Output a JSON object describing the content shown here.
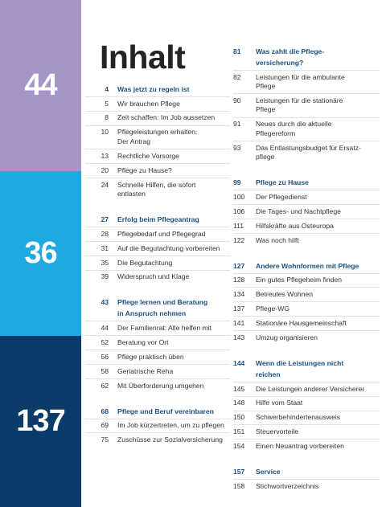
{
  "sidebar": [
    {
      "number": "44"
    },
    {
      "number": "36"
    },
    {
      "number": "137"
    }
  ],
  "title": "Inhalt",
  "columns": [
    [
      {
        "page": "4",
        "lines": [
          "Was jetzt zu regeln ist"
        ],
        "entries": [
          {
            "page": "5",
            "lines": [
              "Wir brauchen Pflege"
            ]
          },
          {
            "page": "8",
            "lines": [
              "Zeit schaffen: Im Job aussetzen"
            ]
          },
          {
            "page": "10",
            "lines": [
              "Pflegeleistungen erhalten:",
              "Der Antrag"
            ]
          },
          {
            "page": "13",
            "lines": [
              "Rechtliche Vorsorge"
            ]
          },
          {
            "page": "20",
            "lines": [
              "Pflege zu Hause?"
            ]
          },
          {
            "page": "24",
            "lines": [
              "Schnelle Hilfen, die sofort",
              "entlasten"
            ]
          }
        ]
      },
      {
        "page": "27",
        "lines": [
          "Erfolg beim Pflegeantrag"
        ],
        "entries": [
          {
            "page": "28",
            "lines": [
              "Pflegebedarf und Pflegegrad"
            ]
          },
          {
            "page": "31",
            "lines": [
              "Auf die Begutachtung vorbereiten"
            ]
          },
          {
            "page": "35",
            "lines": [
              "Die Begutachtung"
            ]
          },
          {
            "page": "39",
            "lines": [
              "Widerspruch und Klage"
            ]
          }
        ]
      },
      {
        "page": "43",
        "lines": [
          "Pflege lernen und Beratung",
          "in Anspruch nehmen"
        ],
        "entries": [
          {
            "page": "44",
            "lines": [
              "Der Familienrat: Alle helfen mit"
            ]
          },
          {
            "page": "52",
            "lines": [
              "Beratung vor Ort"
            ]
          },
          {
            "page": "56",
            "lines": [
              "Pflege praktisch üben"
            ]
          },
          {
            "page": "58",
            "lines": [
              "Geriatrische Reha"
            ]
          },
          {
            "page": "62",
            "lines": [
              "Mit Überforderung umgehen"
            ]
          }
        ]
      },
      {
        "page": "68",
        "lines": [
          "Pflege und Beruf vereinbaren"
        ],
        "entries": [
          {
            "page": "69",
            "lines": [
              "Im Job kürzertreten, um zu pflegen"
            ]
          },
          {
            "page": "75",
            "lines": [
              "Zuschüsse zur Sozialversicherung"
            ]
          }
        ]
      }
    ],
    [
      {
        "page": "81",
        "lines": [
          "Was zahlt die Pflege-",
          "versicherung?"
        ],
        "entries": [
          {
            "page": "82",
            "lines": [
              "Leistungen für die ambulante",
              "Pflege"
            ]
          },
          {
            "page": "90",
            "lines": [
              "Leistungen für die stationäre",
              "Pflege"
            ]
          },
          {
            "page": "91",
            "lines": [
              "Neues durch die aktuelle",
              "Pflegereform"
            ]
          },
          {
            "page": "93",
            "lines": [
              "Das Entlastungsbudget für Ersatz-",
              "pflege"
            ]
          }
        ]
      },
      {
        "page": "99",
        "lines": [
          "Pflege zu Hause"
        ],
        "entries": [
          {
            "page": "100",
            "lines": [
              "Der Pflegedienst"
            ]
          },
          {
            "page": "106",
            "lines": [
              "Die Tages- und Nachtpflege"
            ]
          },
          {
            "page": "111",
            "lines": [
              "Hilfskräfte aus Osteuropa"
            ]
          },
          {
            "page": "122",
            "lines": [
              "Was noch hilft"
            ]
          }
        ]
      },
      {
        "page": "127",
        "lines": [
          "Andere Wohnformen mit Pflege"
        ],
        "entries": [
          {
            "page": "128",
            "lines": [
              "Ein gutes Pflegeheim finden"
            ]
          },
          {
            "page": "134",
            "lines": [
              "Betreutes Wohnen"
            ]
          },
          {
            "page": "137",
            "lines": [
              "Pflege-WG"
            ]
          },
          {
            "page": "141",
            "lines": [
              "Stationäre Hausgemeinschaft"
            ]
          },
          {
            "page": "143",
            "lines": [
              "Umzug organisieren"
            ]
          }
        ]
      },
      {
        "page": "144",
        "lines": [
          "Wenn die Leistungen nicht",
          "reichen"
        ],
        "entries": [
          {
            "page": "145",
            "lines": [
              "Die Leistungen anderer Versicherer"
            ]
          },
          {
            "page": "148",
            "lines": [
              "Hilfe vom Staat"
            ]
          },
          {
            "page": "150",
            "lines": [
              "Schwerbehindertenausweis"
            ]
          },
          {
            "page": "151",
            "lines": [
              "Steuervorteile"
            ]
          },
          {
            "page": "154",
            "lines": [
              "Einen Neuantrag vorbereiten"
            ]
          }
        ]
      },
      {
        "page": "157",
        "lines": [
          "Service"
        ],
        "entries": [
          {
            "page": "158",
            "lines": [
              "Stichwortverzeichnis"
            ]
          }
        ]
      }
    ]
  ]
}
